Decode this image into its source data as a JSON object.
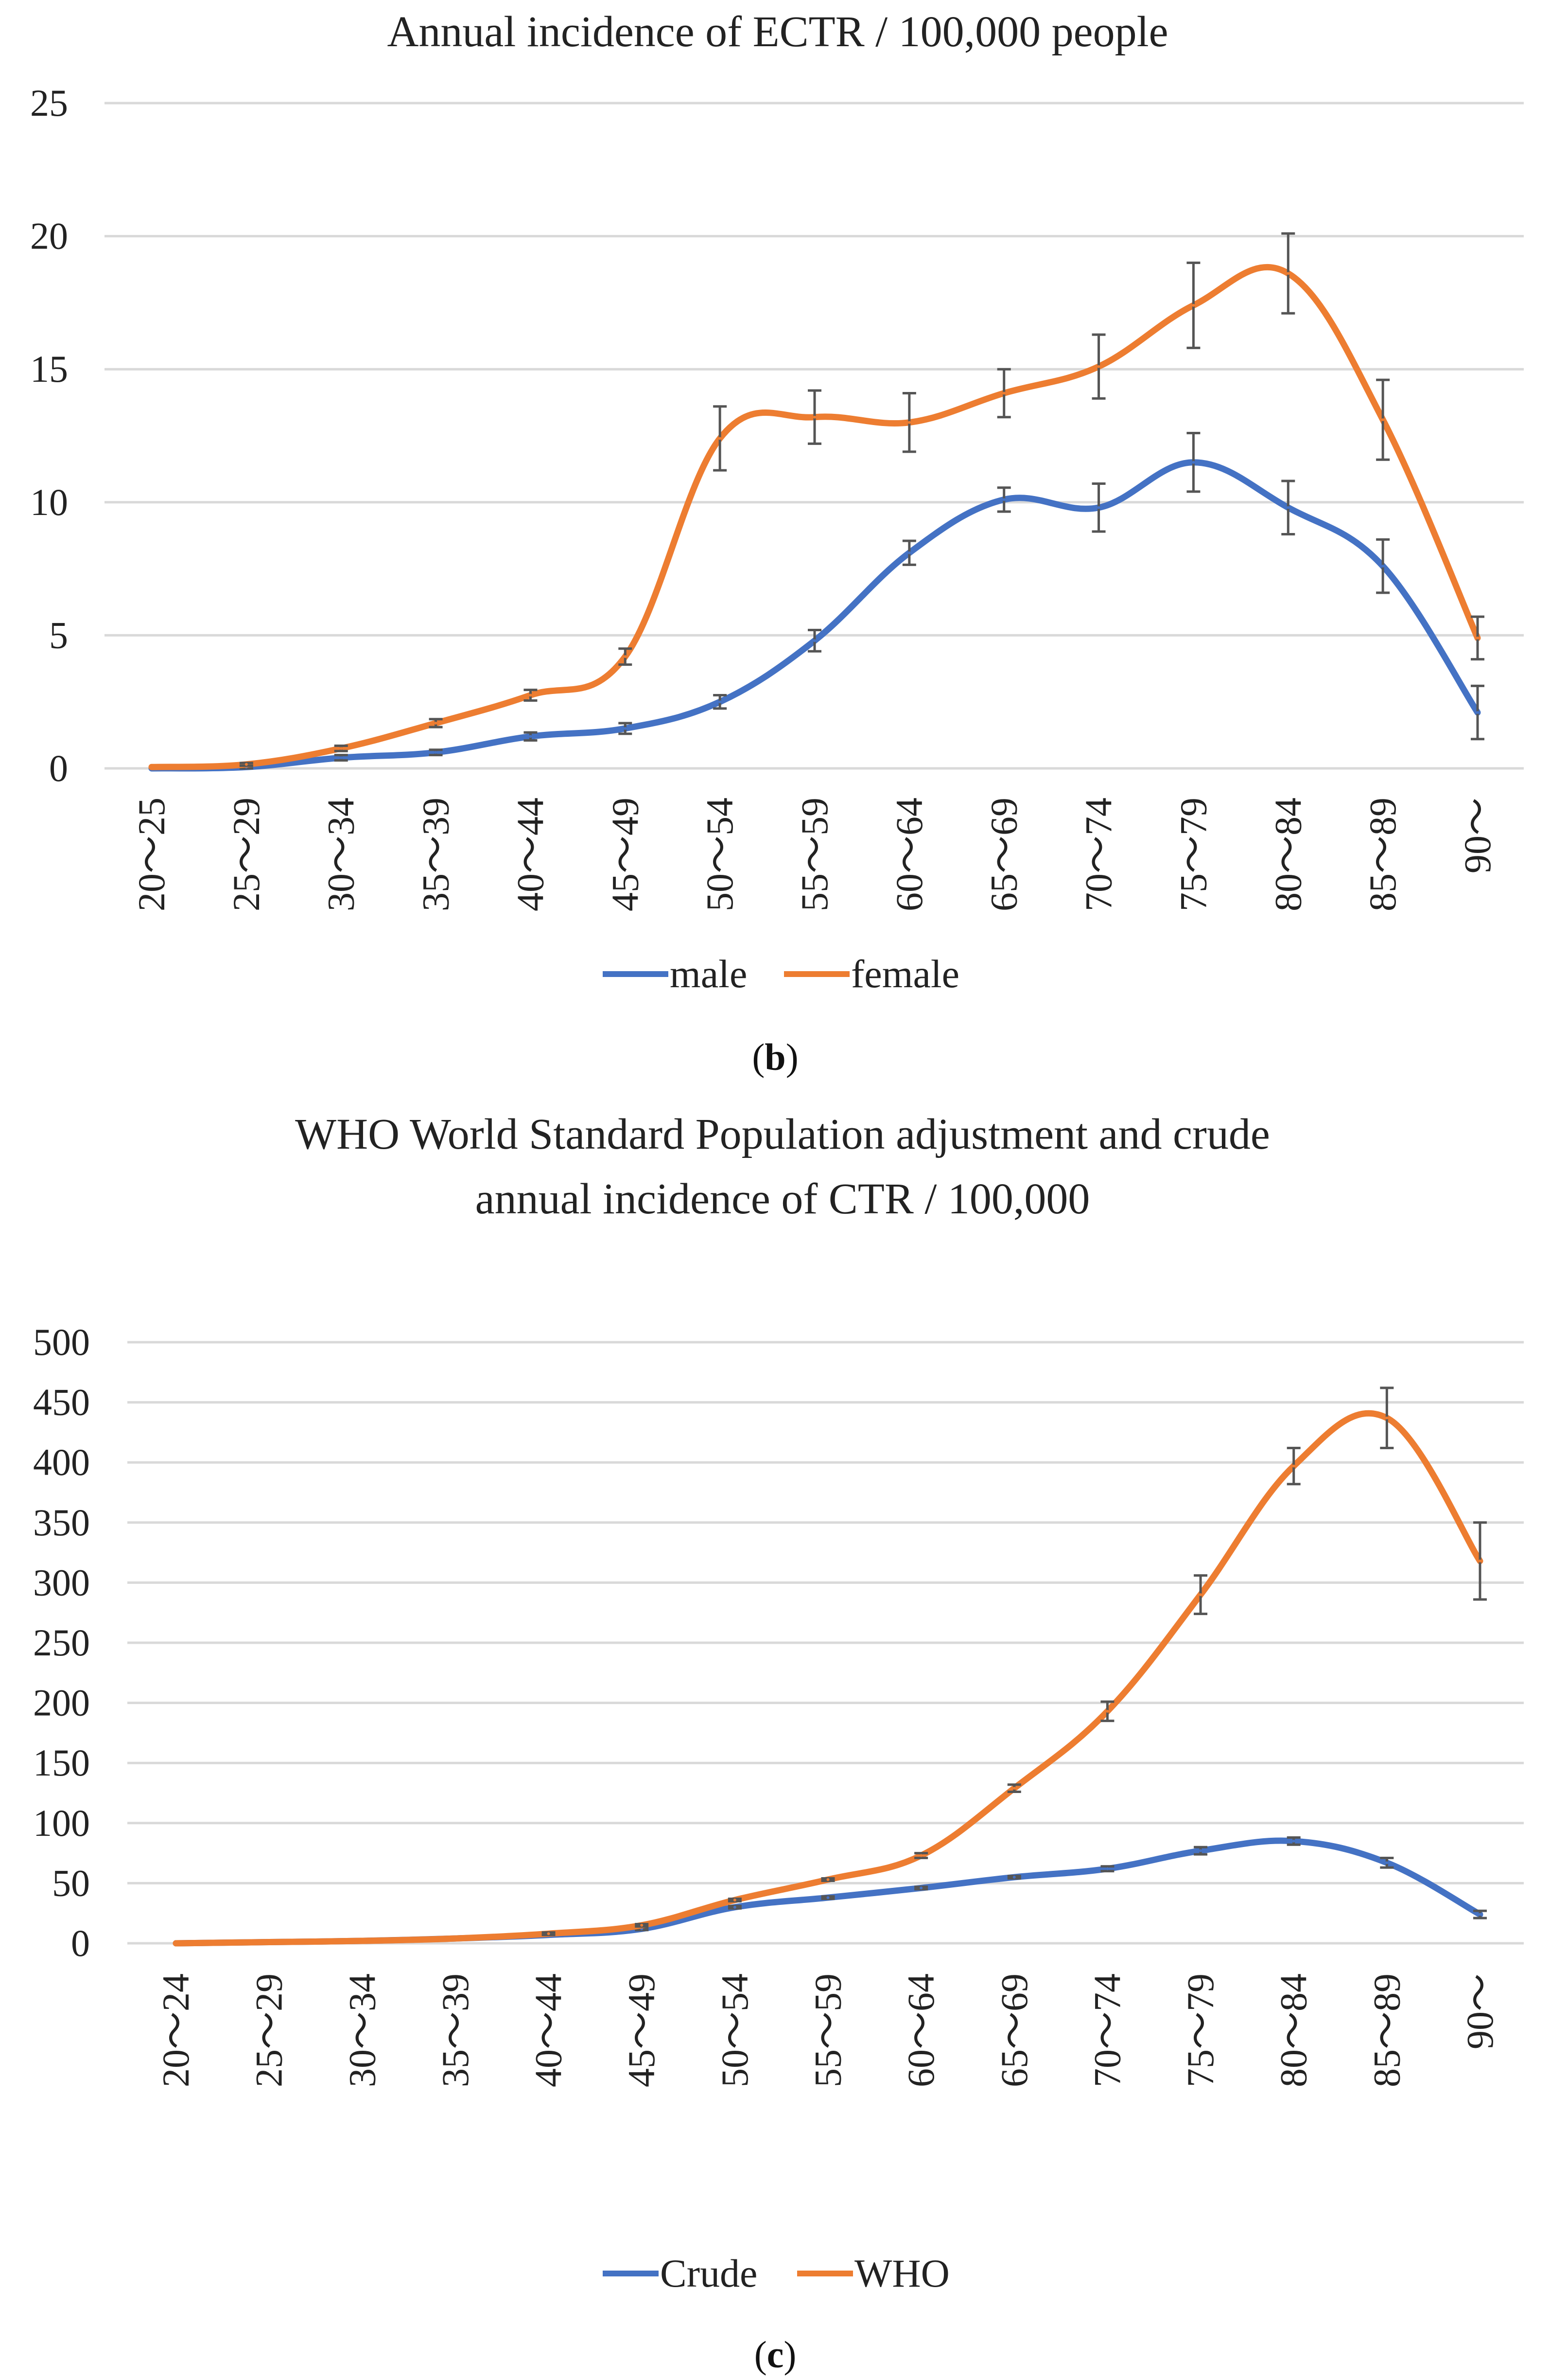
{
  "figure": {
    "caption_b": "b",
    "caption_c": "c"
  },
  "chart_data": [
    {
      "type": "line",
      "title": "Annual incidence of ECTR / 100,000 people",
      "categories": [
        "20～25",
        "25～29",
        "30～34",
        "35～39",
        "40～44",
        "45～49",
        "50～54",
        "55～59",
        "60～64",
        "65～69",
        "70～74",
        "75～79",
        "80～84",
        "85～89",
        "90～"
      ],
      "ylim": [
        0,
        25
      ],
      "yticks": [
        0,
        5,
        10,
        15,
        20,
        25
      ],
      "grid": true,
      "legend": "bottom",
      "series": [
        {
          "name": "male",
          "color": "#4472C4",
          "values": [
            0,
            0.05,
            0.4,
            0.6,
            1.2,
            1.5,
            2.5,
            4.8,
            8.1,
            10.1,
            9.8,
            11.5,
            9.8,
            7.6,
            2.1
          ],
          "errors": [
            0,
            0.05,
            0.1,
            0.1,
            0.15,
            0.2,
            0.25,
            0.4,
            0.45,
            0.45,
            0.9,
            1.1,
            1.0,
            1.0,
            1.0
          ]
        },
        {
          "name": "female",
          "color": "#ED7D31",
          "values": [
            0.05,
            0.15,
            0.75,
            1.7,
            2.75,
            4.2,
            12.4,
            13.2,
            13.0,
            14.1,
            15.1,
            17.4,
            18.6,
            13.1,
            4.9
          ],
          "errors": [
            0,
            0.05,
            0.1,
            0.15,
            0.2,
            0.3,
            1.2,
            1.0,
            1.1,
            0.9,
            1.2,
            1.6,
            1.5,
            1.5,
            0.8
          ]
        }
      ]
    },
    {
      "type": "line",
      "title": "WHO World Standard Population adjustment and crude",
      "title_line2": "annual incidence of CTR / 100,000",
      "categories": [
        "20～24",
        "25～29",
        "30～34",
        "35～39",
        "40～44",
        "45～49",
        "50～54",
        "55～59",
        "60～64",
        "65～69",
        "70～74",
        "75～79",
        "80～84",
        "85～89",
        "90～"
      ],
      "ylim": [
        0,
        500
      ],
      "yticks": [
        0,
        50,
        100,
        150,
        200,
        250,
        300,
        350,
        400,
        450,
        500
      ],
      "grid": true,
      "legend": "bottom",
      "series": [
        {
          "name": "Crude",
          "color": "#4472C4",
          "values": [
            0,
            1,
            2,
            4,
            7,
            12,
            30,
            38,
            46,
            55,
            62,
            77,
            85,
            67,
            24
          ],
          "errors": [
            0,
            0,
            0,
            0,
            0,
            1,
            1,
            1,
            1,
            1,
            2,
            3,
            3,
            4,
            3
          ]
        },
        {
          "name": "WHO",
          "color": "#ED7D31",
          "values": [
            0,
            1,
            2,
            4,
            8,
            15,
            36,
            53,
            73,
            129,
            193,
            290,
            397,
            437,
            318
          ],
          "errors": [
            0,
            0,
            0,
            0,
            1,
            1,
            1,
            1,
            2,
            3,
            8,
            16,
            15,
            25,
            32
          ]
        }
      ]
    }
  ]
}
